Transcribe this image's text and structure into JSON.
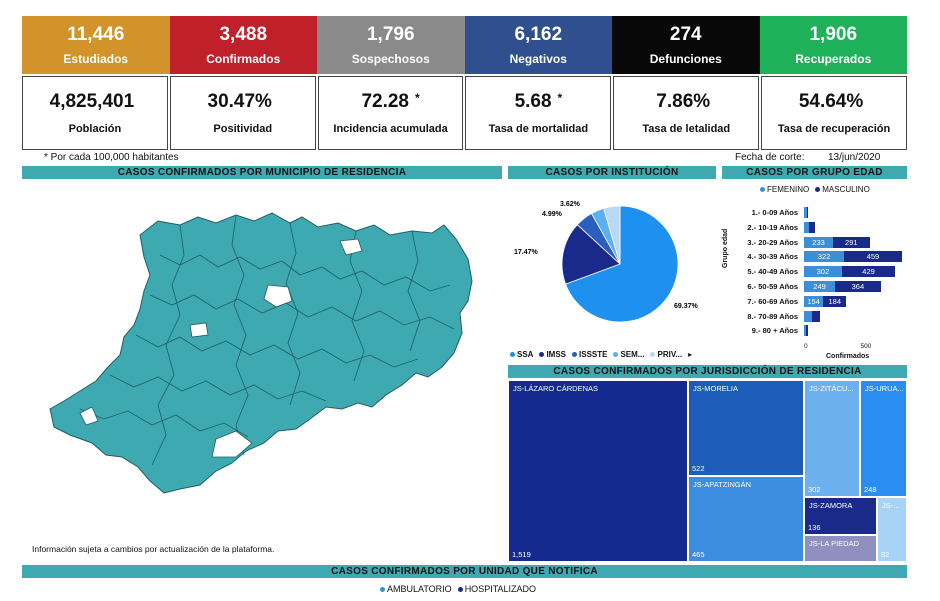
{
  "kpis": [
    {
      "value": "11,446",
      "label": "Estudiados",
      "color": "#d1932a"
    },
    {
      "value": "3,488",
      "label": "Confirmados",
      "color": "#c0202a"
    },
    {
      "value": "1,796",
      "label": "Sospechosos",
      "color": "#8a8a8a"
    },
    {
      "value": "6,162",
      "label": "Negativos",
      "color": "#2f4f8f"
    },
    {
      "value": "274",
      "label": "Defunciones",
      "color": "#080808"
    },
    {
      "value": "1,906",
      "label": "Recuperados",
      "color": "#1fb05a"
    }
  ],
  "stats": [
    {
      "value": "4,825,401",
      "label": "Población",
      "star": ""
    },
    {
      "value": "30.47%",
      "label": "Positividad",
      "star": ""
    },
    {
      "value": "72.28",
      "label": "Incidencia acumulada",
      "star": "*"
    },
    {
      "value": "5.68",
      "label": "Tasa de mortalidad",
      "star": "*"
    },
    {
      "value": "7.86%",
      "label": "Tasa de letalidad",
      "star": ""
    },
    {
      "value": "54.64%",
      "label": "Tasa de recuperación",
      "star": ""
    }
  ],
  "notes": {
    "per_habitants": "* Por cada 100,000 habitantes",
    "cutoff_label": "Fecha de corte:",
    "cutoff_date": "13/jun/2020",
    "map_disclaimer": "Información sujeta a cambios por actualización de la plataforma."
  },
  "sections": {
    "municipio": "CASOS CONFIRMADOS POR MUNICIPIO DE RESIDENCIA",
    "institucion": "CASOS POR INSTITUCIÓN",
    "grupo_edad": "CASOS POR GRUPO EDAD",
    "jurisdiccion": "CASOS CONFIRMADOS POR JURISDICCIÓN DE RESIDENCIA",
    "unidad": "CASOS CONFIRMADOS POR UNIDAD QUE NOTIFICA"
  },
  "age_legend": {
    "femenino": "FEMENINO",
    "masculino": "MASCULINO"
  },
  "age_axis": {
    "ylabel": "Grupo edad",
    "xlabel": "Confirmados",
    "tick0": "0",
    "tick500": "500"
  },
  "unit_legend": {
    "ambulatorio": "AMBULATORIO",
    "hospitalizado": "HOSPITALIZADO"
  },
  "colors": {
    "teal": "#3fa9b1",
    "femenino": "#3b8fd9",
    "masculino": "#1a2a8a"
  },
  "chart_data": [
    {
      "type": "pie",
      "title": "CASOS POR INSTITUCIÓN",
      "labels": [
        "SSA",
        "IMSS",
        "ISSSTE",
        "SEM...",
        "PRIV..."
      ],
      "values": [
        69.37,
        17.47,
        4.99,
        3.62,
        4.55
      ],
      "label_texts": [
        "69.37%",
        "17.47%",
        "4.99%",
        "3.62%"
      ],
      "colors": [
        "#1e90f0",
        "#1a2a8a",
        "#2a5fc0",
        "#5bb0f0",
        "#b9d8f5"
      ]
    },
    {
      "type": "bar",
      "title": "CASOS POR GRUPO EDAD",
      "categories": [
        "1.- 0-09 Años",
        "2.- 10-19 Años",
        "3.- 20-29 Años",
        "4.- 30-39 Años",
        "5.- 40-49 Años",
        "6.- 50-59 Años",
        "7.- 60-69 Años",
        "8.- 70-89 Años",
        "9.- 80 + Años"
      ],
      "series": [
        {
          "name": "FEMENINO",
          "values": [
            20,
            40,
            233,
            322,
            302,
            249,
            154,
            60,
            15
          ]
        },
        {
          "name": "MASCULINO",
          "values": [
            15,
            45,
            291,
            459,
            429,
            364,
            184,
            70,
            20
          ]
        }
      ],
      "labeled": [
        "",
        "",
        "233|291",
        "322|459",
        "302|429",
        "249|364",
        "154|184",
        "",
        ""
      ],
      "xlim": [
        0,
        900
      ],
      "xlabel": "Confirmados",
      "ylabel": "Grupo edad"
    },
    {
      "type": "treemap",
      "title": "CASOS CONFIRMADOS POR JURISDICCIÓN DE RESIDENCIA",
      "items": [
        {
          "name": "JS-LÁZARO CÁRDENAS",
          "value": 1519
        },
        {
          "name": "JS-MORELIA",
          "value": 522
        },
        {
          "name": "JS-APATZINGÁN",
          "value": 465
        },
        {
          "name": "JS-ZITÁCU...",
          "value": 302
        },
        {
          "name": "JS-URUA...",
          "value": 248
        },
        {
          "name": "JS-ZAMORA",
          "value": 136
        },
        {
          "name": "JS-LA PIEDAD",
          "value": null
        },
        {
          "name": "JS-...",
          "value": 82
        }
      ]
    }
  ]
}
